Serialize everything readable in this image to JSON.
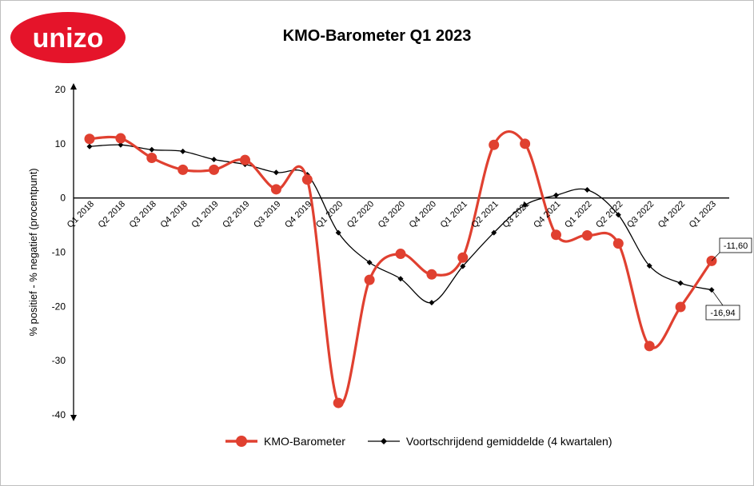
{
  "logo": {
    "text": "unizo",
    "color": "#e5142a"
  },
  "chart_data": {
    "type": "line",
    "title": "KMO-Barometer Q1 2023",
    "ylabel": "% positief - % negatief (procentpunt)",
    "xlabel": "",
    "ylim": [
      -40,
      20
    ],
    "yticks": [
      20,
      10,
      0,
      -10,
      -20,
      -30,
      -40
    ],
    "grid": false,
    "legend": "bottom",
    "categories": [
      "Q1 2018",
      "Q2 2018",
      "Q3 2018",
      "Q4 2018",
      "Q1 2019",
      "Q2 2019",
      "Q3 2019",
      "Q4 2019",
      "Q1 2020",
      "Q2 2020",
      "Q3 2020",
      "Q4 2020",
      "Q1 2021",
      "Q2 2021",
      "Q3 2021",
      "Q4 2021",
      "Q1 2022",
      "Q2 2022",
      "Q3 2022",
      "Q4 2022",
      "Q1 2023"
    ],
    "series": [
      {
        "name": "KMO-Barometer",
        "color": "#e04030",
        "values": [
          10.9,
          11.0,
          7.4,
          5.2,
          5.2,
          7.0,
          1.6,
          3.4,
          -37.8,
          -15.1,
          -10.3,
          -14.1,
          -11.0,
          9.8,
          10.0,
          -6.8,
          -6.9,
          -8.4,
          -27.3,
          -20.1,
          -11.6
        ]
      },
      {
        "name": "Voortschrijdend gemiddelde (4 kwartalen)",
        "color": "#000000",
        "values": [
          9.5,
          9.8,
          8.9,
          8.6,
          7.1,
          6.2,
          4.7,
          4.3,
          -6.4,
          -11.9,
          -14.9,
          -19.3,
          -12.6,
          -6.4,
          -1.3,
          0.5,
          1.5,
          -3.1,
          -12.5,
          -15.7,
          -16.94
        ]
      }
    ],
    "annotations": [
      {
        "text": "-11,60",
        "series": 0,
        "index": 20
      },
      {
        "text": "-16,94",
        "series": 1,
        "index": 20
      }
    ]
  }
}
